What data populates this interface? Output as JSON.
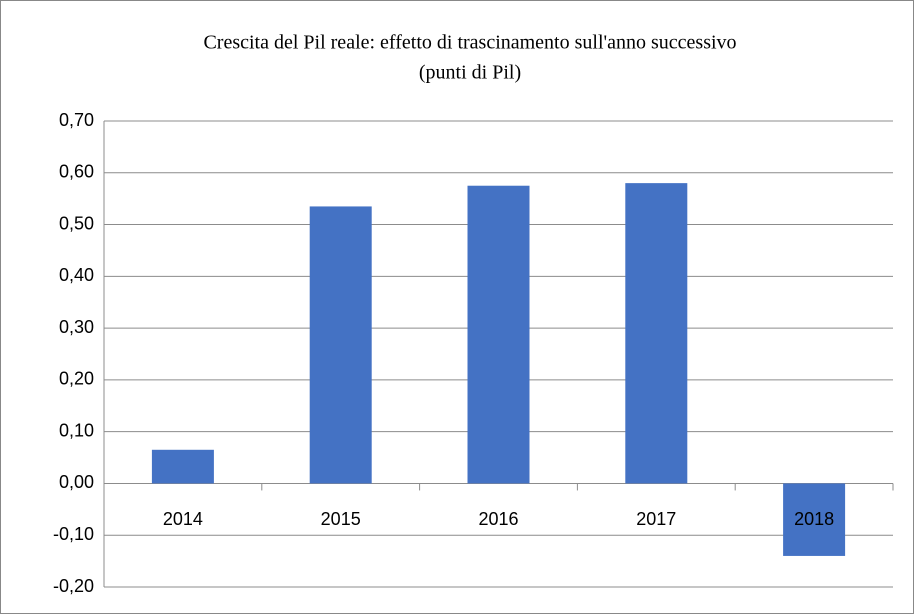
{
  "chart_data": {
    "type": "bar",
    "title": "Crescita del Pil reale: effetto di trascinamento sull'anno successivo",
    "subtitle": "(punti di Pil)",
    "categories": [
      "2014",
      "2015",
      "2016",
      "2017",
      "2018"
    ],
    "values": [
      0.065,
      0.535,
      0.575,
      0.58,
      -0.14
    ],
    "color": "#4472c4",
    "ylim": [
      -0.2,
      0.7
    ],
    "yticks": [
      {
        "value": -0.2,
        "label": "-0,20"
      },
      {
        "value": -0.1,
        "label": "-0,10"
      },
      {
        "value": 0,
        "label": "0,00"
      },
      {
        "value": 0.1,
        "label": "0,10"
      },
      {
        "value": 0.2,
        "label": "0,20"
      },
      {
        "value": 0.3,
        "label": "0,30"
      },
      {
        "value": 0.4,
        "label": "0,40"
      },
      {
        "value": 0.5,
        "label": "0,50"
      },
      {
        "value": 0.6,
        "label": "0,60"
      },
      {
        "value": 0.7,
        "label": "0,70"
      }
    ],
    "grid": true
  }
}
